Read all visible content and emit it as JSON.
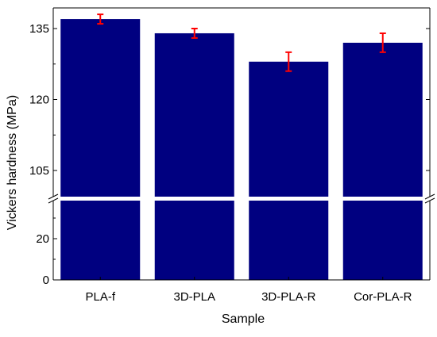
{
  "chart_data": {
    "type": "bar",
    "xlabel": "Sample",
    "ylabel": "Vickers hardness (MPa)",
    "categories": [
      "PLA-f",
      "3D-PLA",
      "3D-PLA-R",
      "Cor-PLA-R"
    ],
    "values": [
      137,
      134,
      128,
      132
    ],
    "errors": [
      1,
      1,
      2,
      2
    ],
    "y_axis_break": [
      30,
      100
    ],
    "ylim_lower": [
      0,
      30
    ],
    "ylim_upper": [
      100,
      138
    ],
    "yticks_lower": [
      0,
      20
    ],
    "yticks_upper": [
      105,
      120,
      135
    ],
    "bar_color": "#000080",
    "error_color": "#ff0000",
    "grid": false,
    "legend": "none"
  }
}
